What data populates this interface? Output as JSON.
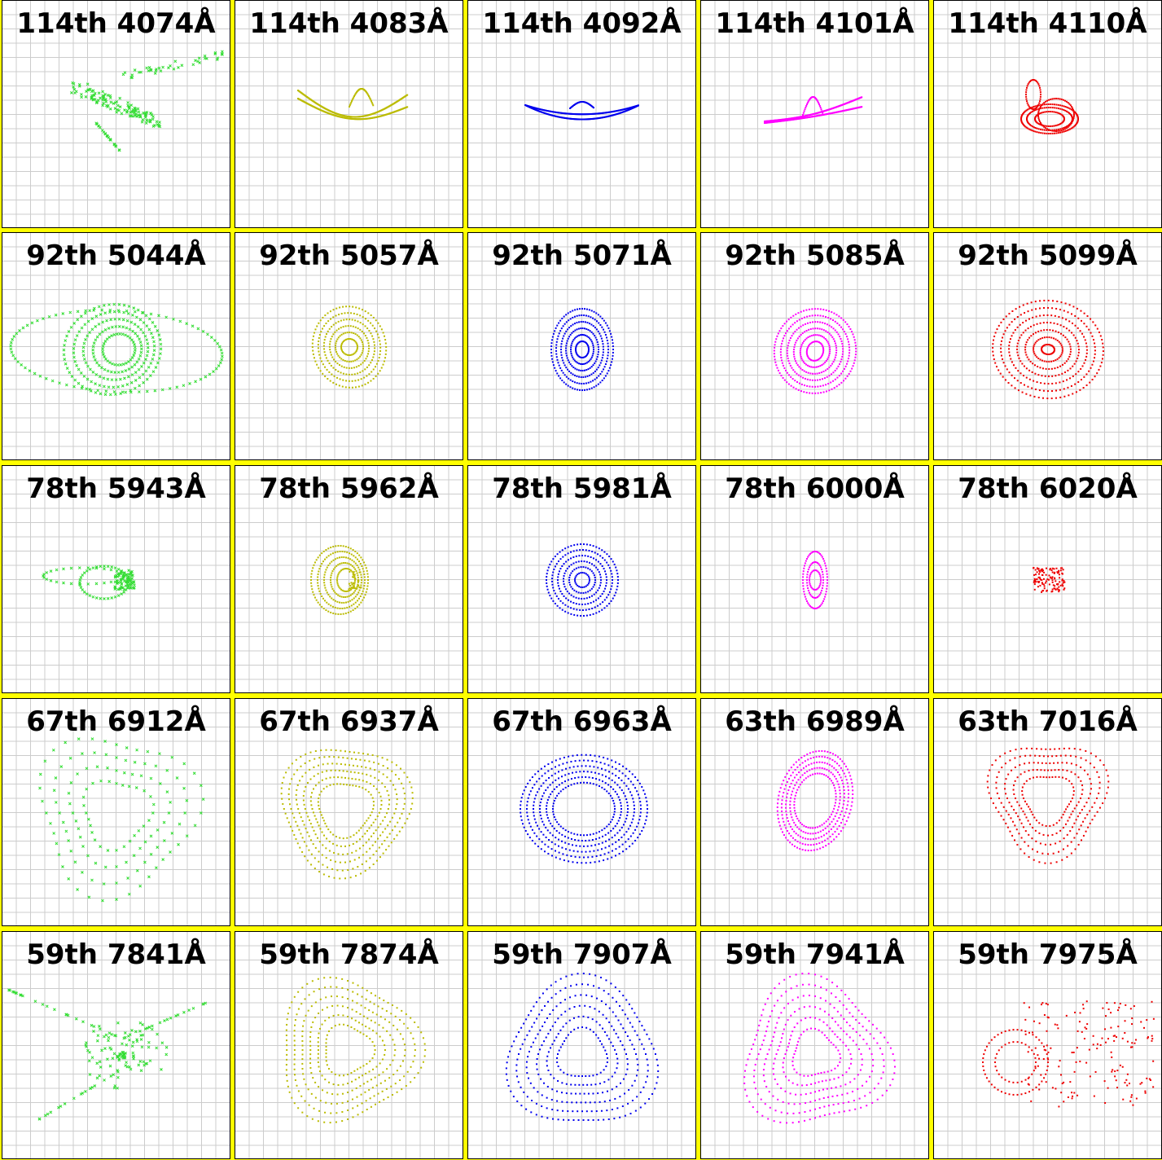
{
  "colors": {
    "separator": "#ffff00",
    "grid_line": "#cccccc",
    "border": "#000000",
    "green": "#33dd33",
    "olive": "#bbbb00",
    "blue": "#0000ee",
    "magenta": "#ff00ff",
    "red": "#ee0000"
  },
  "panels": [
    {
      "label": "114th 4074Å",
      "color": "#33dd33",
      "shape": "boomerang-scatter",
      "marker": "x"
    },
    {
      "label": "114th 4083Å",
      "color": "#bbbb00",
      "shape": "boomerang",
      "marker": "dot"
    },
    {
      "label": "114th 4092Å",
      "color": "#0000ee",
      "shape": "arc-wide",
      "marker": "dot"
    },
    {
      "label": "114th 4101Å",
      "color": "#ff00ff",
      "shape": "arc-tilted",
      "marker": "dot"
    },
    {
      "label": "114th 4110Å",
      "color": "#ee0000",
      "shape": "loops-small",
      "marker": "dot"
    },
    {
      "label": "92th 5044Å",
      "color": "#33dd33",
      "shape": "spiral-wide",
      "marker": "x"
    },
    {
      "label": "92th 5057Å",
      "color": "#bbbb00",
      "shape": "spiral-oval",
      "marker": "dot"
    },
    {
      "label": "92th 5071Å",
      "color": "#0000ee",
      "shape": "rings-oval",
      "marker": "dot"
    },
    {
      "label": "92th 5085Å",
      "color": "#ff00ff",
      "shape": "spiral-egg",
      "marker": "dot"
    },
    {
      "label": "92th 5099Å",
      "color": "#ee0000",
      "shape": "rings-large",
      "marker": "dot"
    },
    {
      "label": "78th 5943Å",
      "color": "#33dd33",
      "shape": "cluster-tail",
      "marker": "x"
    },
    {
      "label": "78th 5962Å",
      "color": "#bbbb00",
      "shape": "loops-oval",
      "marker": "dot"
    },
    {
      "label": "78th 5981Å",
      "color": "#0000ee",
      "shape": "rings-round",
      "marker": "dot"
    },
    {
      "label": "78th 6000Å",
      "color": "#ff00ff",
      "shape": "loops-tall",
      "marker": "dot"
    },
    {
      "label": "78th 6020Å",
      "color": "#ee0000",
      "shape": "blob-small",
      "marker": "dot"
    },
    {
      "label": "67th 6912Å",
      "color": "#33dd33",
      "shape": "triangle-scatter",
      "marker": "x"
    },
    {
      "label": "67th 6937Å",
      "color": "#bbbb00",
      "shape": "rings-triangle",
      "marker": "dot"
    },
    {
      "label": "67th 6963Å",
      "color": "#0000ee",
      "shape": "rings-large-round",
      "marker": "dot"
    },
    {
      "label": "63th 6989Å",
      "color": "#ff00ff",
      "shape": "loops-tilted",
      "marker": "dot"
    },
    {
      "label": "63th 7016Å",
      "color": "#ee0000",
      "shape": "triangle-down",
      "marker": "dot"
    },
    {
      "label": "59th 7841Å",
      "color": "#33dd33",
      "shape": "star-scatter",
      "marker": "x"
    },
    {
      "label": "59th 7874Å",
      "color": "#bbbb00",
      "shape": "rings-triangle-right",
      "marker": "dot"
    },
    {
      "label": "59th 7907Å",
      "color": "#0000ee",
      "shape": "rings-triangle-up",
      "marker": "dot"
    },
    {
      "label": "59th 7941Å",
      "color": "#ff00ff",
      "shape": "rings-triangle-tilt",
      "marker": "dot"
    },
    {
      "label": "59th 7975Å",
      "color": "#ee0000",
      "shape": "double-blob",
      "marker": "dot"
    }
  ]
}
